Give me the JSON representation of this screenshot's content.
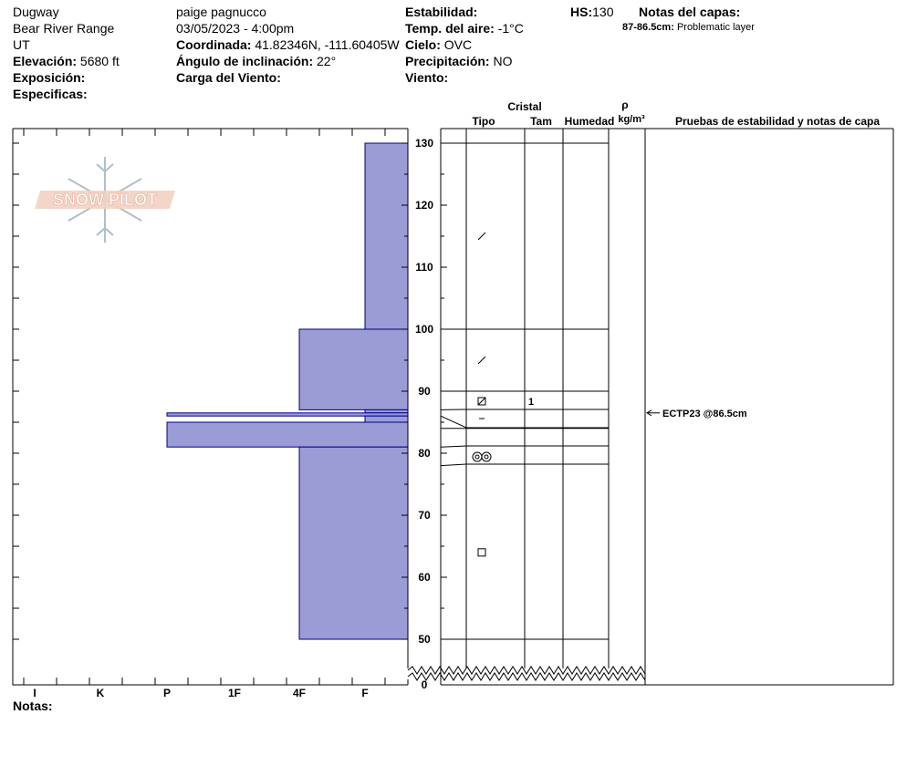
{
  "header": {
    "location": "Dugway",
    "range": "Bear River Range",
    "state": "UT",
    "elevation_label": "Elevación:",
    "elevation_value": "5680 ft",
    "aspect_label": "Exposición:",
    "specifics_label": "Especificas:",
    "observer": "paige pagnucco",
    "datetime": "03/05/2023 - 4:00pm",
    "coord_label": "Coordinada:",
    "coord_value": "41.82346N, -111.60405W",
    "slope_label": "Ángulo de inclinación:",
    "slope_value": "22°",
    "wind_load_label": "Carga del Viento:",
    "stability_label": "Estabilidad:",
    "air_temp_label": "Temp. del aire:",
    "air_temp_value": "-1°C",
    "sky_label": "Cielo:",
    "sky_value": "OVC",
    "precip_label": "Precipitación:",
    "precip_value": "NO",
    "wind_label": "Viento:",
    "hs_label": "HS:",
    "hs_value": "130",
    "layer_notes_label": "Notas del capas:",
    "layer_note_range": "87-86.5cm:",
    "layer_note_text": "Problematic layer"
  },
  "columns": {
    "crystal": "Cristal",
    "type": "Tipo",
    "size": "Tam",
    "moisture": "Humedad",
    "rho": "ρ",
    "density_unit": "kg/m³",
    "tests": "Pruebas de estabilidad y notas de capa"
  },
  "logo_text": "SNOW PILOT",
  "notes_label": "Notas:",
  "stability_test": "ECTP23 @86.5cm",
  "crystal_size_value": "1",
  "colors": {
    "hardness_fill": "#9b9bd6",
    "hardness_stroke": "#00008b"
  },
  "chart_data": {
    "type": "bar",
    "orientation": "horizontal",
    "y_axis": {
      "ylim": [
        0,
        130
      ],
      "ticks": [
        0,
        50,
        60,
        70,
        80,
        90,
        100,
        110,
        120,
        130
      ],
      "axis_break_below": 50
    },
    "x_axis": {
      "categories": [
        "I",
        "K",
        "P",
        "1F",
        "4F",
        "F"
      ]
    },
    "hardness_layers": [
      {
        "top": 130,
        "bottom": 100,
        "hardness": "F"
      },
      {
        "top": 100,
        "bottom": 87,
        "hardness": "4F"
      },
      {
        "top": 87,
        "bottom": 86.5,
        "hardness": "F"
      },
      {
        "top": 86.5,
        "bottom": 86,
        "hardness": "P"
      },
      {
        "top": 86,
        "bottom": 85,
        "hardness": "F"
      },
      {
        "top": 85,
        "bottom": 81,
        "hardness": "P"
      },
      {
        "top": 81,
        "bottom": 50,
        "hardness": "4F"
      }
    ],
    "layer_boundaries": [
      130,
      100,
      90,
      87,
      86,
      84,
      81,
      78,
      50
    ],
    "crystal_types": [
      {
        "height": 115,
        "symbol": "decomposing"
      },
      {
        "height": 95,
        "symbol": "decomposing"
      },
      {
        "height": 88.5,
        "symbol": "faceted-rounded"
      },
      {
        "height": 85.5,
        "symbol": "hoar-line"
      },
      {
        "height": 79.5,
        "symbol": "melt-freeze"
      },
      {
        "height": 64,
        "symbol": "faceted"
      }
    ],
    "crystal_size_height": 88.5,
    "stability_test_height": 86.5
  }
}
